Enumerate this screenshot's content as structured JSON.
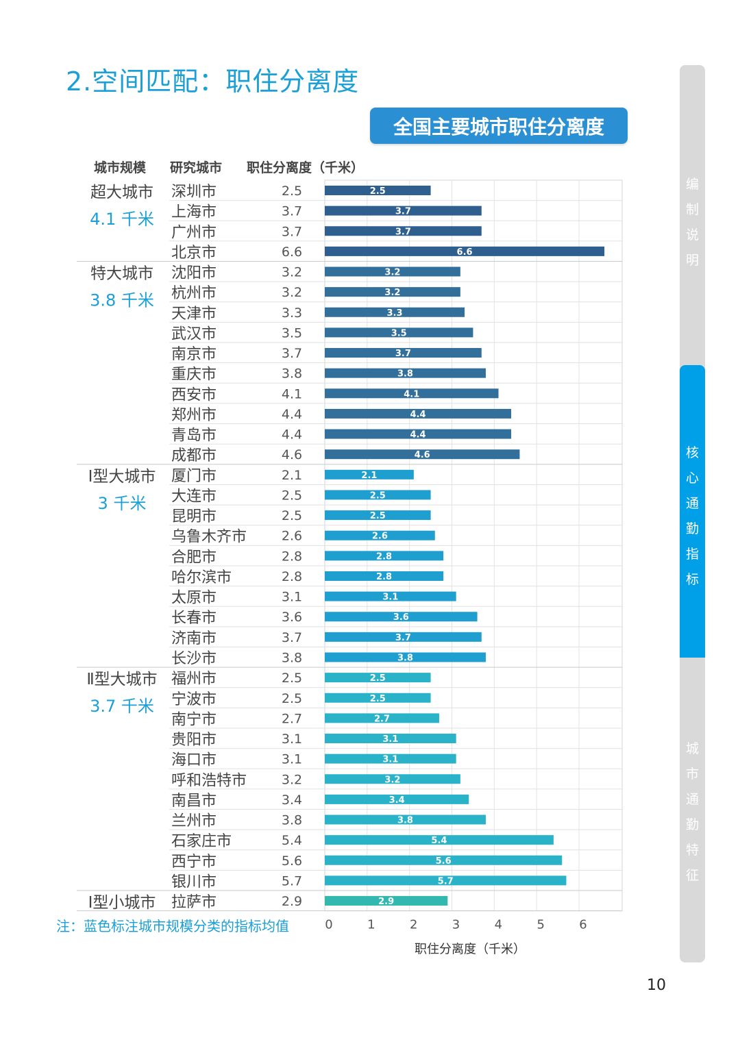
{
  "page_title": "2.空间匹配：职住分离度",
  "chart_banner": "全国主要城市职住分离度",
  "table_headers": {
    "scale": "城市规模",
    "city": "研究城市",
    "value": "职住分离度（千米）"
  },
  "note": "注：蓝色标注城市规模分类的指标均值",
  "side_tabs": [
    {
      "label": "编制说明",
      "active": false
    },
    {
      "label": "核心通勤指标",
      "active": true
    },
    {
      "label": "城市通勤特征",
      "active": false
    }
  ],
  "page_number": "10",
  "colors": {
    "title": "#1a9fd6",
    "groups": [
      "#2e5f8e",
      "#336f9b",
      "#1e9fcf",
      "#2ab3c8",
      "#33b8b0"
    ]
  },
  "chart_data": {
    "type": "bar",
    "orientation": "horizontal",
    "xlabel": "职住分离度（千米）",
    "xlim": [
      0,
      6.8
    ],
    "xticks": [
      "0",
      "1",
      "2",
      "3",
      "4",
      "5",
      "6"
    ],
    "grid": true,
    "groups": [
      {
        "name": "超大城市",
        "avg": "4.1 千米",
        "cities": [
          "深圳市",
          "上海市",
          "广州市",
          "北京市"
        ],
        "values": [
          2.5,
          3.7,
          3.7,
          6.6
        ],
        "labels": [
          "2.5",
          "3.7",
          "3.7",
          "6.6"
        ]
      },
      {
        "name": "特大城市",
        "avg": "3.8 千米",
        "cities": [
          "沈阳市",
          "杭州市",
          "天津市",
          "武汉市",
          "南京市",
          "重庆市",
          "西安市",
          "郑州市",
          "青岛市",
          "成都市"
        ],
        "values": [
          3.2,
          3.2,
          3.3,
          3.5,
          3.7,
          3.8,
          4.1,
          4.4,
          4.4,
          4.6
        ],
        "labels": [
          "3.2",
          "3.2",
          "3.3",
          "3.5",
          "3.7",
          "3.8",
          "4.1",
          "4.4",
          "4.4",
          "4.6"
        ]
      },
      {
        "name": "Ⅰ型大城市",
        "avg": "3 千米",
        "cities": [
          "厦门市",
          "大连市",
          "昆明市",
          "乌鲁木齐市",
          "合肥市",
          "哈尔滨市",
          "太原市",
          "长春市",
          "济南市",
          "长沙市"
        ],
        "values": [
          2.1,
          2.5,
          2.5,
          2.6,
          2.8,
          2.8,
          3.1,
          3.6,
          3.7,
          3.8
        ],
        "labels": [
          "2.1",
          "2.5",
          "2.5",
          "2.6",
          "2.8",
          "2.8",
          "3.1",
          "3.6",
          "3.7",
          "3.8"
        ]
      },
      {
        "name": "Ⅱ型大城市",
        "avg": "3.7 千米",
        "cities": [
          "福州市",
          "宁波市",
          "南宁市",
          "贵阳市",
          "海口市",
          "呼和浩特市",
          "南昌市",
          "兰州市",
          "石家庄市",
          "西宁市",
          "银川市"
        ],
        "values": [
          2.5,
          2.5,
          2.7,
          3.1,
          3.1,
          3.2,
          3.4,
          3.8,
          5.4,
          5.6,
          5.7
        ],
        "labels": [
          "2.5",
          "2.5",
          "2.7",
          "3.1",
          "3.1",
          "3.2",
          "3.4",
          "3.8",
          "5.4",
          "5.6",
          "5.7"
        ]
      },
      {
        "name": "Ⅰ型小城市",
        "avg": "",
        "cities": [
          "拉萨市"
        ],
        "values": [
          2.9
        ],
        "labels": [
          "2.9"
        ]
      }
    ]
  }
}
